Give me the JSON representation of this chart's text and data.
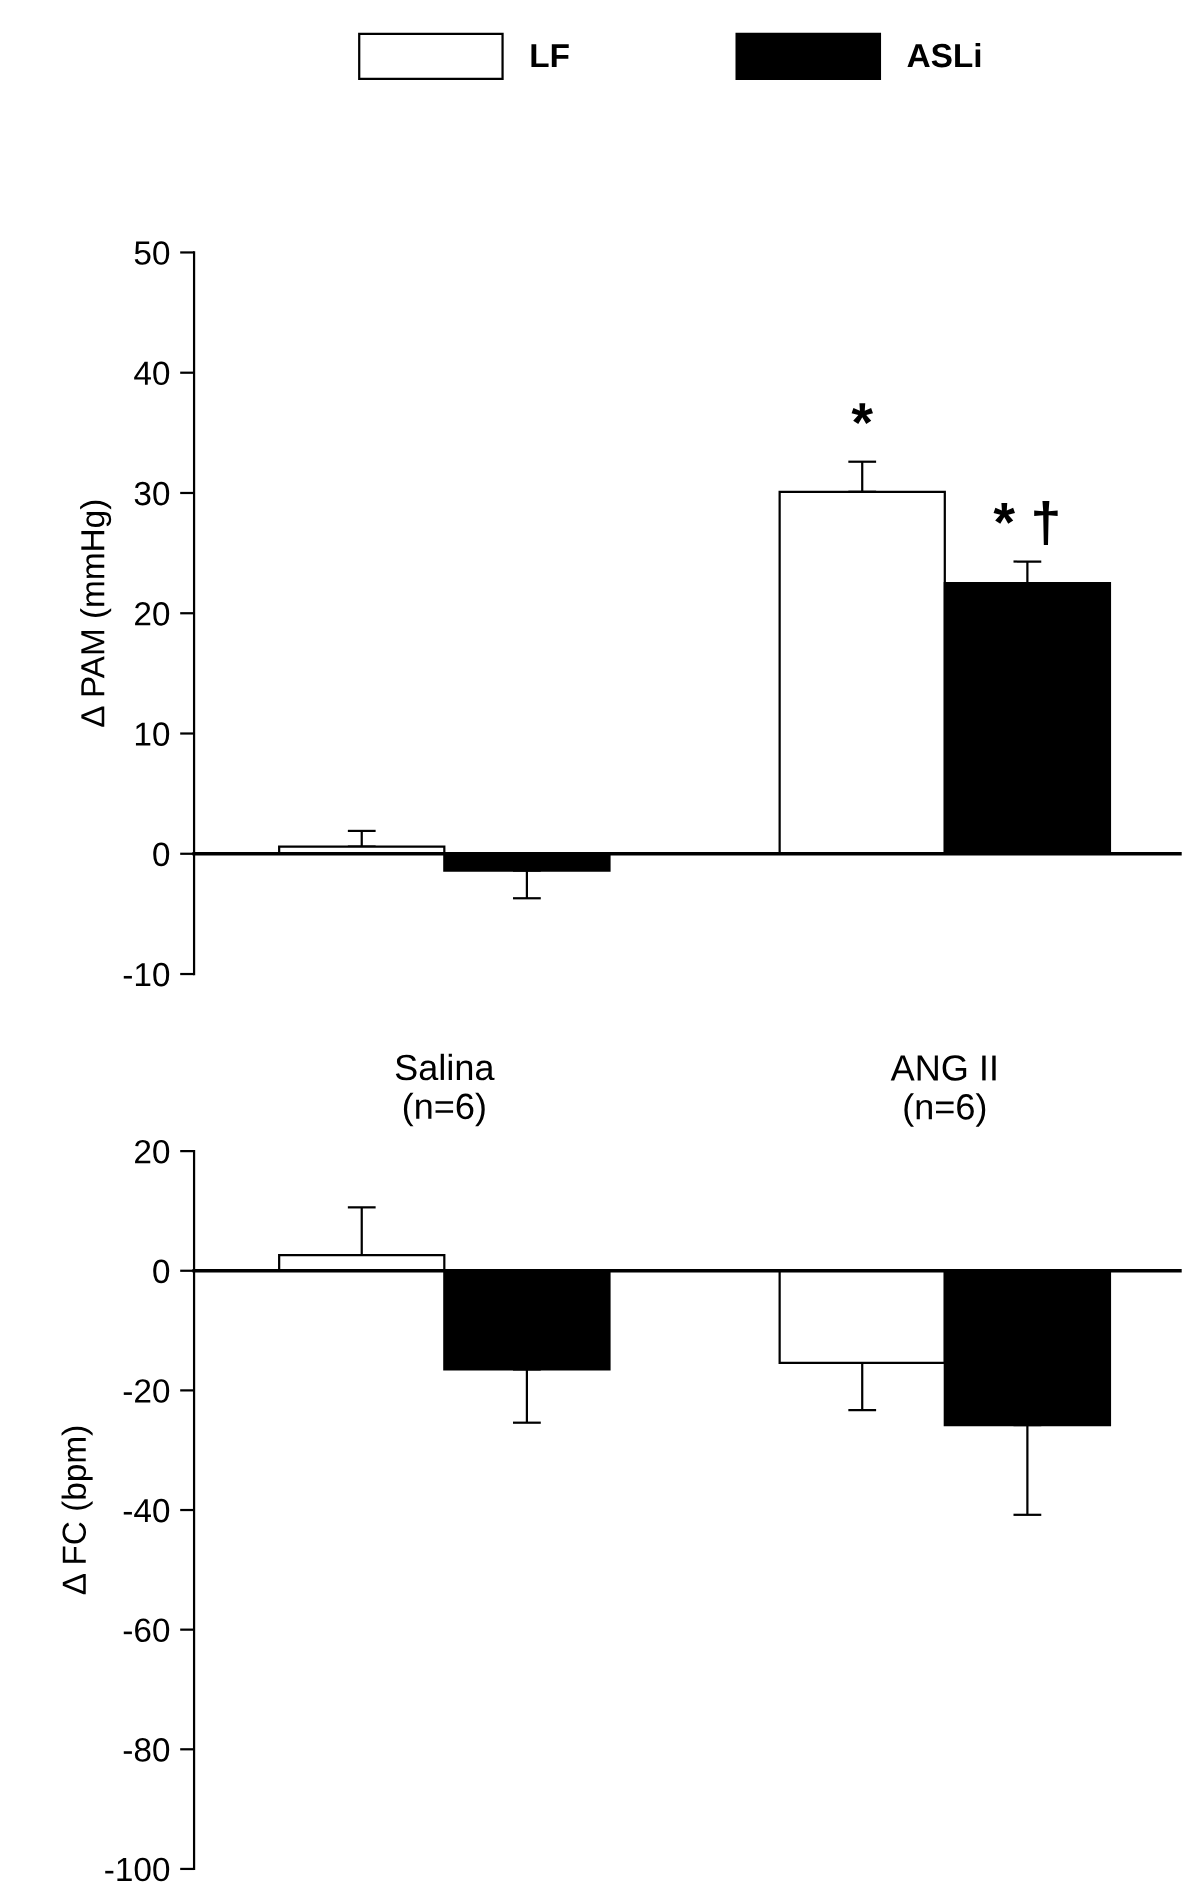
{
  "chart_data": [
    {
      "type": "bar",
      "categories": [
        "Salina\n(n=6)",
        "ANG II\n(n=6)"
      ],
      "ylabel": "Δ PAM (mmHg)",
      "ylim": [
        -10,
        50
      ],
      "yticks": [
        -10,
        0,
        10,
        20,
        30,
        40,
        50
      ],
      "legend": "top",
      "series": [
        {
          "name": "LF",
          "color": "#ffffff",
          "values": [
            0.6,
            30.1
          ],
          "errors": [
            [
              0.6,
              1.9
            ],
            [
              30.1,
              32.6
            ]
          ]
        },
        {
          "name": "ASLi",
          "color": "#000000",
          "values": [
            -1.4,
            22.5
          ],
          "errors": [
            [
              -3.7,
              -1.4
            ],
            [
              22.5,
              24.3
            ]
          ]
        }
      ],
      "annotations": [
        {
          "text": "*",
          "x": "ANG II\n(n=6)",
          "y": 30.1
        },
        {
          "text": "* †",
          "x": "ANG II\n(n=6)",
          "y": 22.5
        }
      ]
    },
    {
      "type": "bar",
      "categories": [
        null,
        null
      ],
      "ylabel": "Δ FC (bpm)",
      "ylim": [
        -100,
        20
      ],
      "yticks": [
        -100,
        -80,
        -60,
        -40,
        -20,
        0,
        20
      ],
      "tick_labels": "y",
      "series": [
        {
          "color": "#ffffff",
          "values": [
            2.6,
            -15.4
          ],
          "errors": [
            [
              2.6,
              10.6
            ],
            [
              -23.3,
              -15.4
            ]
          ]
        },
        {
          "color": "#000000",
          "values": [
            -16.5,
            -25.8
          ],
          "errors": [
            [
              -25.4,
              -16.5
            ],
            [
              -40.8,
              -25.8
            ]
          ]
        }
      ]
    }
  ]
}
